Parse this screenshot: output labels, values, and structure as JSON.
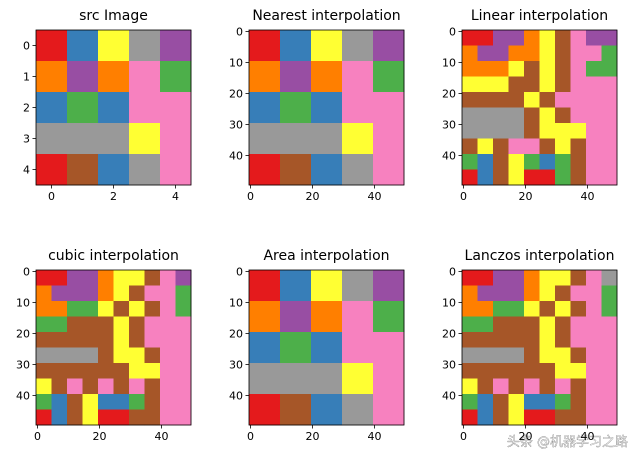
{
  "chart_data": [
    {
      "type": "heatmap",
      "title": "src Image",
      "colors": [
        "#e41a1c",
        "#377eb8",
        "#4daf4a",
        "#984ea3",
        "#ff7f00",
        "#ffff33",
        "#a65628",
        "#f781bf",
        "#999999"
      ],
      "values": [
        [
          0,
          1,
          5,
          8,
          3
        ],
        [
          4,
          3,
          4,
          7,
          2
        ],
        [
          1,
          2,
          1,
          7,
          7
        ],
        [
          8,
          8,
          8,
          5,
          7
        ],
        [
          0,
          6,
          1,
          8,
          7
        ]
      ],
      "xlim": [
        -0.5,
        4.5
      ],
      "ylim": [
        4.5,
        -0.5
      ],
      "xticks": [
        0,
        2,
        4
      ],
      "yticks": [
        0,
        1,
        2,
        3,
        4
      ]
    },
    {
      "type": "heatmap",
      "title": "Nearest interpolation",
      "colors": [
        "#e41a1c",
        "#377eb8",
        "#4daf4a",
        "#984ea3",
        "#ff7f00",
        "#ffff33",
        "#a65628",
        "#f781bf",
        "#999999"
      ],
      "values": [
        [
          0,
          1,
          5,
          8,
          3
        ],
        [
          4,
          3,
          4,
          7,
          2
        ],
        [
          1,
          2,
          1,
          7,
          7
        ],
        [
          8,
          8,
          8,
          5,
          7
        ],
        [
          0,
          6,
          1,
          8,
          7
        ]
      ],
      "xlim": [
        -0.5,
        49.5
      ],
      "ylim": [
        49.5,
        -0.5
      ],
      "xticks": [
        0,
        20,
        40
      ],
      "yticks": [
        0,
        10,
        20,
        30,
        40
      ]
    },
    {
      "type": "heatmap",
      "title": "Linear interpolation",
      "colors": [
        "#e41a1c",
        "#377eb8",
        "#4daf4a",
        "#984ea3",
        "#ff7f00",
        "#ffff33",
        "#a65628",
        "#f781bf",
        "#999999"
      ],
      "values": [
        [
          0,
          0,
          3,
          3,
          4,
          5,
          6,
          7,
          3,
          3
        ],
        [
          4,
          3,
          3,
          4,
          4,
          5,
          6,
          7,
          7,
          2
        ],
        [
          4,
          4,
          4,
          5,
          6,
          5,
          6,
          7,
          2,
          2
        ],
        [
          5,
          5,
          5,
          6,
          6,
          5,
          6,
          7,
          7,
          7
        ],
        [
          6,
          6,
          6,
          6,
          5,
          6,
          7,
          7,
          7,
          7
        ],
        [
          8,
          8,
          8,
          8,
          6,
          5,
          6,
          7,
          7,
          7
        ],
        [
          8,
          8,
          8,
          8,
          6,
          5,
          5,
          5,
          7,
          7
        ],
        [
          6,
          5,
          6,
          7,
          7,
          6,
          5,
          6,
          7,
          7
        ],
        [
          2,
          1,
          6,
          5,
          2,
          1,
          2,
          6,
          7,
          7
        ],
        [
          0,
          1,
          6,
          5,
          0,
          0,
          2,
          6,
          7,
          7
        ]
      ],
      "xlim": [
        -0.5,
        49.5
      ],
      "ylim": [
        49.5,
        -0.5
      ],
      "xticks": [
        0,
        20,
        40
      ],
      "yticks": [
        0,
        10,
        20,
        30,
        40
      ]
    },
    {
      "type": "heatmap",
      "title": "cubic interpolation",
      "colors": [
        "#e41a1c",
        "#377eb8",
        "#4daf4a",
        "#984ea3",
        "#ff7f00",
        "#ffff33",
        "#a65628",
        "#f781bf",
        "#999999"
      ],
      "values": [
        [
          0,
          0,
          3,
          3,
          4,
          5,
          5,
          6,
          7,
          3
        ],
        [
          4,
          3,
          3,
          3,
          4,
          5,
          6,
          7,
          7,
          2
        ],
        [
          4,
          4,
          2,
          2,
          5,
          6,
          5,
          6,
          7,
          2
        ],
        [
          2,
          2,
          6,
          6,
          6,
          5,
          6,
          7,
          7,
          7
        ],
        [
          6,
          6,
          6,
          6,
          6,
          5,
          6,
          7,
          7,
          7
        ],
        [
          8,
          8,
          8,
          8,
          6,
          5,
          5,
          6,
          7,
          7
        ],
        [
          6,
          6,
          6,
          6,
          6,
          6,
          5,
          5,
          7,
          7
        ],
        [
          5,
          6,
          7,
          6,
          7,
          6,
          7,
          6,
          7,
          7
        ],
        [
          2,
          1,
          6,
          5,
          1,
          1,
          2,
          6,
          7,
          7
        ],
        [
          0,
          1,
          6,
          5,
          0,
          0,
          6,
          6,
          7,
          7
        ]
      ],
      "xlim": [
        -0.5,
        49.5
      ],
      "ylim": [
        49.5,
        -0.5
      ],
      "xticks": [
        0,
        20,
        40
      ],
      "yticks": [
        0,
        10,
        20,
        30,
        40
      ]
    },
    {
      "type": "heatmap",
      "title": "Area interpolation",
      "colors": [
        "#e41a1c",
        "#377eb8",
        "#4daf4a",
        "#984ea3",
        "#ff7f00",
        "#ffff33",
        "#a65628",
        "#f781bf",
        "#999999"
      ],
      "values": [
        [
          0,
          1,
          5,
          8,
          3
        ],
        [
          4,
          3,
          4,
          7,
          2
        ],
        [
          1,
          2,
          1,
          7,
          7
        ],
        [
          8,
          8,
          8,
          5,
          7
        ],
        [
          0,
          6,
          1,
          8,
          7
        ]
      ],
      "xlim": [
        -0.5,
        49.5
      ],
      "ylim": [
        49.5,
        -0.5
      ],
      "xticks": [
        0,
        20,
        40
      ],
      "yticks": [
        0,
        10,
        20,
        30,
        40
      ]
    },
    {
      "type": "heatmap",
      "title": "Lanczos interpolation",
      "colors": [
        "#e41a1c",
        "#377eb8",
        "#4daf4a",
        "#984ea3",
        "#ff7f00",
        "#ffff33",
        "#a65628",
        "#f781bf",
        "#999999"
      ],
      "values": [
        [
          0,
          0,
          3,
          3,
          4,
          5,
          5,
          6,
          7,
          8
        ],
        [
          4,
          3,
          3,
          3,
          4,
          5,
          6,
          7,
          7,
          2
        ],
        [
          4,
          4,
          2,
          2,
          5,
          6,
          5,
          6,
          7,
          2
        ],
        [
          2,
          2,
          6,
          6,
          6,
          5,
          6,
          7,
          7,
          7
        ],
        [
          6,
          6,
          6,
          6,
          6,
          5,
          6,
          7,
          7,
          7
        ],
        [
          8,
          8,
          8,
          8,
          6,
          5,
          5,
          6,
          7,
          7
        ],
        [
          6,
          6,
          6,
          6,
          6,
          6,
          5,
          5,
          7,
          7
        ],
        [
          5,
          6,
          7,
          6,
          7,
          6,
          7,
          6,
          7,
          7
        ],
        [
          2,
          1,
          6,
          5,
          1,
          1,
          2,
          6,
          7,
          7
        ],
        [
          0,
          1,
          6,
          5,
          0,
          0,
          6,
          6,
          7,
          7
        ]
      ],
      "xlim": [
        -0.5,
        49.5
      ],
      "ylim": [
        49.5,
        -0.5
      ],
      "xticks": [
        0,
        20,
        40
      ],
      "yticks": [
        0,
        10,
        20,
        30,
        40
      ]
    }
  ],
  "watermark": "头条 @机器学习之路"
}
